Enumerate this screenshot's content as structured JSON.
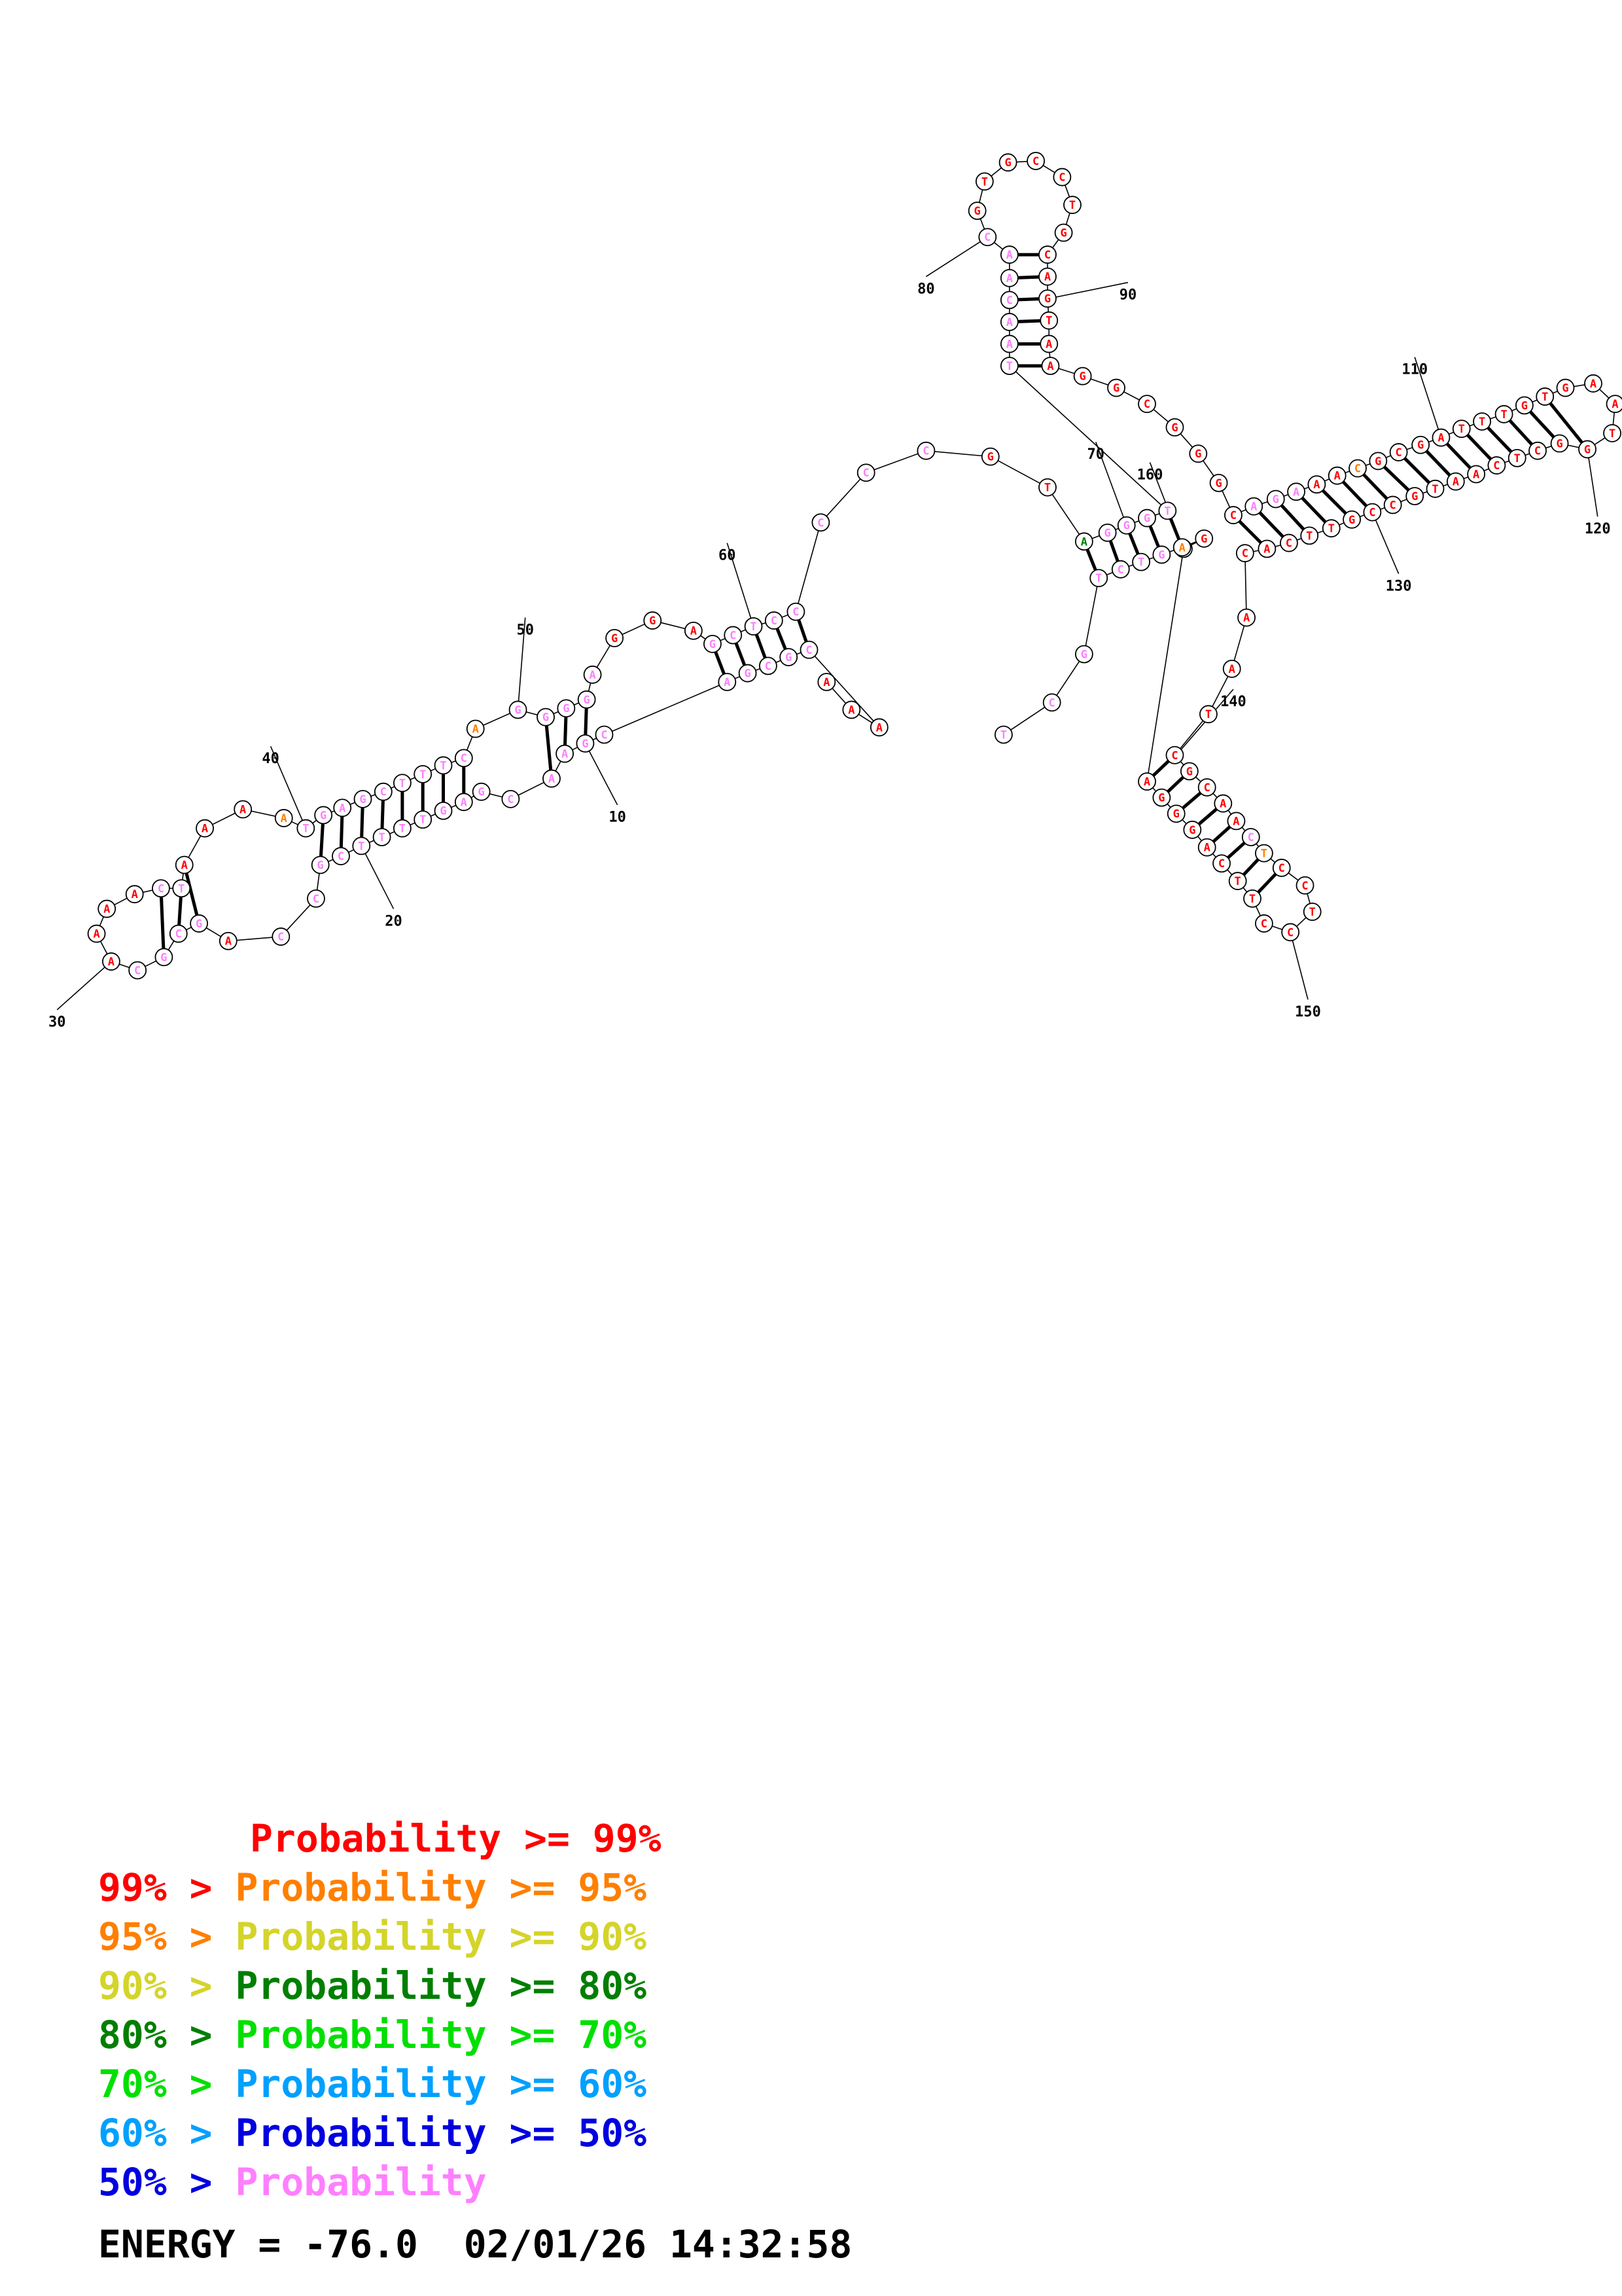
{
  "colors": {
    "p99": "#ff0000",
    "p95": "#ff7f00",
    "p90": "#d4d42a",
    "p80": "#007f00",
    "p70": "#00e000",
    "p60": "#00a0ff",
    "p50": "#0000e0",
    "plow": "#ff7fff"
  },
  "nucleotides": [
    {
      "n": 1,
      "b": "A",
      "c": "p99"
    },
    {
      "n": 2,
      "b": "A",
      "c": "p99"
    },
    {
      "n": 3,
      "b": "A",
      "c": "p99"
    },
    {
      "n": 4,
      "b": "C",
      "c": "plow"
    },
    {
      "n": 5,
      "b": "G",
      "c": "plow"
    },
    {
      "n": 6,
      "b": "C",
      "c": "plow"
    },
    {
      "n": 7,
      "b": "G",
      "c": "plow"
    },
    {
      "n": 8,
      "b": "A",
      "c": "plow"
    },
    {
      "n": 9,
      "b": "C",
      "c": "plow"
    },
    {
      "n": 10,
      "b": "G",
      "c": "plow"
    },
    {
      "n": 11,
      "b": "A",
      "c": "plow"
    },
    {
      "n": 12,
      "b": "A",
      "c": "plow"
    },
    {
      "n": 13,
      "b": "C",
      "c": "plow"
    },
    {
      "n": 14,
      "b": "G",
      "c": "plow"
    },
    {
      "n": 15,
      "b": "A",
      "c": "plow"
    },
    {
      "n": 16,
      "b": "G",
      "c": "plow"
    },
    {
      "n": 17,
      "b": "T",
      "c": "plow"
    },
    {
      "n": 18,
      "b": "T",
      "c": "plow"
    },
    {
      "n": 19,
      "b": "T",
      "c": "plow"
    },
    {
      "n": 20,
      "b": "T",
      "c": "plow"
    },
    {
      "n": 21,
      "b": "C",
      "c": "plow"
    },
    {
      "n": 22,
      "b": "G",
      "c": "plow"
    },
    {
      "n": 23,
      "b": "C",
      "c": "plow"
    },
    {
      "n": 24,
      "b": "C",
      "c": "plow"
    },
    {
      "n": 25,
      "b": "A",
      "c": "p99"
    },
    {
      "n": 26,
      "b": "G",
      "c": "plow"
    },
    {
      "n": 27,
      "b": "C",
      "c": "plow"
    },
    {
      "n": 28,
      "b": "G",
      "c": "plow"
    },
    {
      "n": 29,
      "b": "C",
      "c": "plow"
    },
    {
      "n": 30,
      "b": "A",
      "c": "p99"
    },
    {
      "n": 31,
      "b": "A",
      "c": "p99"
    },
    {
      "n": 32,
      "b": "A",
      "c": "p99"
    },
    {
      "n": 33,
      "b": "A",
      "c": "p99"
    },
    {
      "n": 34,
      "b": "C",
      "c": "plow"
    },
    {
      "n": 35,
      "b": "T",
      "c": "plow"
    },
    {
      "n": 36,
      "b": "A",
      "c": "p99"
    },
    {
      "n": 37,
      "b": "A",
      "c": "p99"
    },
    {
      "n": 38,
      "b": "A",
      "c": "p99"
    },
    {
      "n": 39,
      "b": "A",
      "c": "p95"
    },
    {
      "n": 40,
      "b": "T",
      "c": "plow"
    },
    {
      "n": 41,
      "b": "G",
      "c": "plow"
    },
    {
      "n": 42,
      "b": "A",
      "c": "plow"
    },
    {
      "n": 43,
      "b": "G",
      "c": "plow"
    },
    {
      "n": 44,
      "b": "C",
      "c": "plow"
    },
    {
      "n": 45,
      "b": "T",
      "c": "plow"
    },
    {
      "n": 46,
      "b": "T",
      "c": "plow"
    },
    {
      "n": 47,
      "b": "T",
      "c": "plow"
    },
    {
      "n": 48,
      "b": "C",
      "c": "plow"
    },
    {
      "n": 49,
      "b": "A",
      "c": "p95"
    },
    {
      "n": 50,
      "b": "G",
      "c": "plow"
    },
    {
      "n": 51,
      "b": "G",
      "c": "plow"
    },
    {
      "n": 52,
      "b": "G",
      "c": "plow"
    },
    {
      "n": 53,
      "b": "G",
      "c": "plow"
    },
    {
      "n": 54,
      "b": "A",
      "c": "plow"
    },
    {
      "n": 55,
      "b": "G",
      "c": "p99"
    },
    {
      "n": 56,
      "b": "G",
      "c": "p99"
    },
    {
      "n": 57,
      "b": "A",
      "c": "p99"
    },
    {
      "n": 58,
      "b": "G",
      "c": "plow"
    },
    {
      "n": 59,
      "b": "C",
      "c": "plow"
    },
    {
      "n": 60,
      "b": "T",
      "c": "plow"
    },
    {
      "n": 61,
      "b": "C",
      "c": "plow"
    },
    {
      "n": 62,
      "b": "C",
      "c": "plow"
    },
    {
      "n": 63,
      "b": "C",
      "c": "plow"
    },
    {
      "n": 64,
      "b": "C",
      "c": "plow"
    },
    {
      "n": 65,
      "b": "C",
      "c": "plow"
    },
    {
      "n": 66,
      "b": "G",
      "c": "p99"
    },
    {
      "n": 67,
      "b": "T",
      "c": "p99"
    },
    {
      "n": 68,
      "b": "A",
      "c": "p80"
    },
    {
      "n": 69,
      "b": "G",
      "c": "plow"
    },
    {
      "n": 70,
      "b": "G",
      "c": "plow"
    },
    {
      "n": 71,
      "b": "G",
      "c": "plow"
    },
    {
      "n": 72,
      "b": "T",
      "c": "plow"
    },
    {
      "n": 73,
      "b": "T",
      "c": "plow"
    },
    {
      "n": 74,
      "b": "A",
      "c": "plow"
    },
    {
      "n": 75,
      "b": "A",
      "c": "plow"
    },
    {
      "n": 76,
      "b": "C",
      "c": "plow"
    },
    {
      "n": 77,
      "b": "A",
      "c": "plow"
    },
    {
      "n": 78,
      "b": "A",
      "c": "plow"
    },
    {
      "n": 79,
      "b": "C",
      "c": "plow"
    },
    {
      "n": 80,
      "b": "G",
      "c": "p99"
    },
    {
      "n": 81,
      "b": "T",
      "c": "p99"
    },
    {
      "n": 82,
      "b": "G",
      "c": "p99"
    },
    {
      "n": 83,
      "b": "C",
      "c": "p99"
    },
    {
      "n": 84,
      "b": "C",
      "c": "p99"
    },
    {
      "n": 85,
      "b": "T",
      "c": "p99"
    },
    {
      "n": 86,
      "b": "G",
      "c": "p99"
    },
    {
      "n": 87,
      "b": "C",
      "c": "p99"
    },
    {
      "n": 88,
      "b": "A",
      "c": "p99"
    },
    {
      "n": 89,
      "b": "G",
      "c": "p99"
    },
    {
      "n": 90,
      "b": "T",
      "c": "p99"
    },
    {
      "n": 91,
      "b": "A",
      "c": "p99"
    },
    {
      "n": 92,
      "b": "A",
      "c": "p99"
    },
    {
      "n": 93,
      "b": "G",
      "c": "p99"
    },
    {
      "n": 94,
      "b": "G",
      "c": "p99"
    },
    {
      "n": 95,
      "b": "C",
      "c": "p99"
    },
    {
      "n": 96,
      "b": "G",
      "c": "p99"
    },
    {
      "n": 97,
      "b": "G",
      "c": "p99"
    },
    {
      "n": 98,
      "b": "G",
      "c": "p99"
    },
    {
      "n": 99,
      "b": "C",
      "c": "p99"
    },
    {
      "n": 100,
      "b": "A",
      "c": "plow"
    },
    {
      "n": 101,
      "b": "G",
      "c": "plow"
    },
    {
      "n": 102,
      "b": "A",
      "c": "plow"
    },
    {
      "n": 103,
      "b": "A",
      "c": "p99"
    },
    {
      "n": 104,
      "b": "A",
      "c": "p99"
    },
    {
      "n": 105,
      "b": "C",
      "c": "p95"
    },
    {
      "n": 106,
      "b": "G",
      "c": "p99"
    },
    {
      "n": 107,
      "b": "C",
      "c": "p99"
    },
    {
      "n": 108,
      "b": "G",
      "c": "p99"
    },
    {
      "n": 109,
      "b": "A",
      "c": "p99"
    },
    {
      "n": 110,
      "b": "T",
      "c": "p99"
    },
    {
      "n": 111,
      "b": "T",
      "c": "p99"
    },
    {
      "n": 112,
      "b": "T",
      "c": "p99"
    },
    {
      "n": 113,
      "b": "G",
      "c": "p99"
    },
    {
      "n": 114,
      "b": "T",
      "c": "p99"
    },
    {
      "n": 115,
      "b": "G",
      "c": "p99"
    },
    {
      "n": 116,
      "b": "A",
      "c": "p99"
    },
    {
      "n": 117,
      "b": "A",
      "c": "p99"
    },
    {
      "n": 118,
      "b": "T",
      "c": "p99"
    },
    {
      "n": 119,
      "b": "G",
      "c": "p99"
    },
    {
      "n": 120,
      "b": "G",
      "c": "p99"
    },
    {
      "n": 121,
      "b": "C",
      "c": "p99"
    },
    {
      "n": 122,
      "b": "T",
      "c": "p99"
    },
    {
      "n": 123,
      "b": "C",
      "c": "p99"
    },
    {
      "n": 124,
      "b": "A",
      "c": "p99"
    },
    {
      "n": 125,
      "b": "A",
      "c": "p99"
    },
    {
      "n": 126,
      "b": "T",
      "c": "p99"
    },
    {
      "n": 127,
      "b": "G",
      "c": "p99"
    },
    {
      "n": 128,
      "b": "C",
      "c": "p99"
    },
    {
      "n": 129,
      "b": "C",
      "c": "p99"
    },
    {
      "n": 130,
      "b": "G",
      "c": "p99"
    },
    {
      "n": 131,
      "b": "T",
      "c": "p99"
    },
    {
      "n": 132,
      "b": "T",
      "c": "p99"
    },
    {
      "n": 133,
      "b": "C",
      "c": "p99"
    },
    {
      "n": 134,
      "b": "A",
      "c": "p99"
    },
    {
      "n": 135,
      "b": "C",
      "c": "p99"
    },
    {
      "n": 136,
      "b": "A",
      "c": "p99"
    },
    {
      "n": 137,
      "b": "A",
      "c": "p99"
    },
    {
      "n": 138,
      "b": "T",
      "c": "p99"
    },
    {
      "n": 139,
      "b": "C",
      "c": "p99"
    },
    {
      "n": 140,
      "b": "G",
      "c": "p99"
    },
    {
      "n": 141,
      "b": "C",
      "c": "p99"
    },
    {
      "n": 142,
      "b": "A",
      "c": "p99"
    },
    {
      "n": 143,
      "b": "A",
      "c": "p99"
    },
    {
      "n": 144,
      "b": "C",
      "c": "plow"
    },
    {
      "n": 145,
      "b": "T",
      "c": "p95"
    },
    {
      "n": 146,
      "b": "C",
      "c": "p99"
    },
    {
      "n": 147,
      "b": "C",
      "c": "p99"
    },
    {
      "n": 148,
      "b": "T",
      "c": "p99"
    },
    {
      "n": 149,
      "b": "C",
      "c": "p99"
    },
    {
      "n": 150,
      "b": "C",
      "c": "p99"
    },
    {
      "n": 151,
      "b": "T",
      "c": "p99"
    },
    {
      "n": 152,
      "b": "T",
      "c": "p99"
    },
    {
      "n": 153,
      "b": "C",
      "c": "p99"
    },
    {
      "n": 154,
      "b": "A",
      "c": "p99"
    },
    {
      "n": 155,
      "b": "G",
      "c": "p99"
    },
    {
      "n": 156,
      "b": "G",
      "c": "p99"
    },
    {
      "n": 157,
      "b": "G",
      "c": "p99"
    },
    {
      "n": 158,
      "b": "A",
      "c": "p99"
    },
    {
      "n": 159,
      "b": "G",
      "c": "p99"
    },
    {
      "n": 160,
      "b": "G",
      "c": "p99"
    },
    {
      "n": 161,
      "b": "A",
      "c": "p95"
    },
    {
      "n": 162,
      "b": "G",
      "c": "plow"
    },
    {
      "n": 163,
      "b": "T",
      "c": "plow"
    },
    {
      "n": 164,
      "b": "C",
      "c": "plow"
    },
    {
      "n": 165,
      "b": "T",
      "c": "plow"
    },
    {
      "n": 166,
      "b": "G",
      "c": "plow"
    },
    {
      "n": 167,
      "b": "C",
      "c": "plow"
    },
    {
      "n": 168,
      "b": "T",
      "c": "plow"
    },
    {
      "n": 169,
      "b": "A",
      "c": "plow"
    },
    {
      "n": 170,
      "b": "C",
      "c": "plow"
    },
    {
      "n": 171,
      "b": "A",
      "c": "plow"
    },
    {
      "n": 172,
      "b": "C",
      "c": "plow"
    },
    {
      "n": 173,
      "b": "C",
      "c": "plow"
    },
    {
      "n": 174,
      "b": "A",
      "c": "plow"
    },
    {
      "n": 175,
      "b": "A",
      "c": "plow"
    },
    {
      "n": 176,
      "b": "A",
      "c": "p99"
    }
  ],
  "pairs": [
    [
      5,
      53
    ],
    [
      6,
      52
    ],
    [
      7,
      51
    ],
    [
      9,
      47
    ],
    [
      10,
      46
    ],
    [
      11,
      45
    ],
    [
      12,
      44
    ],
    [
      13,
      43
    ],
    [
      14,
      42
    ],
    [
      15,
      41
    ],
    [
      16,
      40
    ],
    [
      17,
      39
    ],
    [
      18,
      38
    ],
    [
      19,
      25
    ],
    [
      20,
      24
    ],
    [
      55,
      66
    ],
    [
      56,
      65
    ],
    [
      57,
      64
    ],
    [
      58,
      63
    ],
    [
      59,
      62
    ],
    [
      67,
      172
    ],
    [
      68,
      171
    ],
    [
      69,
      170
    ],
    [
      70,
      169
    ],
    [
      71,
      168
    ],
    [
      73,
      97
    ],
    [
      74,
      96
    ],
    [
      75,
      95
    ],
    [
      76,
      94
    ],
    [
      77,
      93
    ],
    [
      78,
      92
    ],
    [
      105,
      142
    ],
    [
      106,
      141
    ],
    [
      107,
      140
    ],
    [
      108,
      139
    ],
    [
      109,
      138
    ],
    [
      110,
      137
    ],
    [
      111,
      136
    ],
    [
      112,
      135
    ],
    [
      113,
      134
    ],
    [
      114,
      133
    ],
    [
      115,
      132
    ],
    [
      116,
      131
    ],
    [
      145,
      160
    ],
    [
      146,
      159
    ],
    [
      147,
      158
    ],
    [
      148,
      157
    ],
    [
      149,
      156
    ],
    [
      150,
      155
    ]
  ],
  "number_labels": [
    {
      "n": 10,
      "text": "10"
    },
    {
      "n": 20,
      "text": "20"
    },
    {
      "n": 30,
      "text": "30"
    },
    {
      "n": 40,
      "text": "40"
    },
    {
      "n": 50,
      "text": "50"
    },
    {
      "n": 60,
      "text": "60"
    },
    {
      "n": 70,
      "text": "70"
    },
    {
      "n": 80,
      "text": "80"
    },
    {
      "n": 90,
      "text": "90"
    },
    {
      "n": 110,
      "text": "110"
    },
    {
      "n": 120,
      "text": "120"
    },
    {
      "n": 130,
      "text": "130"
    },
    {
      "n": 140,
      "text": "140"
    },
    {
      "n": 150,
      "text": "150"
    },
    {
      "n": 160,
      "text": "160"
    }
  ],
  "legend": [
    {
      "prefix": "",
      "label": "Probability >= 99%",
      "color": "p99"
    },
    {
      "prefix": "99% > ",
      "label": "Probability >= 95%",
      "color": "p95"
    },
    {
      "prefix": "95% > ",
      "label": "Probability >= 90%",
      "color": "p90"
    },
    {
      "prefix": "90% > ",
      "label": "Probability >= 80%",
      "color": "p80"
    },
    {
      "prefix": "80% > ",
      "label": "Probability >= 70%",
      "color": "p70"
    },
    {
      "prefix": "70% > ",
      "label": "Probability >= 60%",
      "color": "p60"
    },
    {
      "prefix": "60% > ",
      "label": "Probability >= 50%",
      "color": "p50"
    },
    {
      "prefix": "50% > ",
      "label": "Probability",
      "color": "plow"
    }
  ],
  "energy_text": "ENERGY = -76.0  02/01/26 14:32:58"
}
